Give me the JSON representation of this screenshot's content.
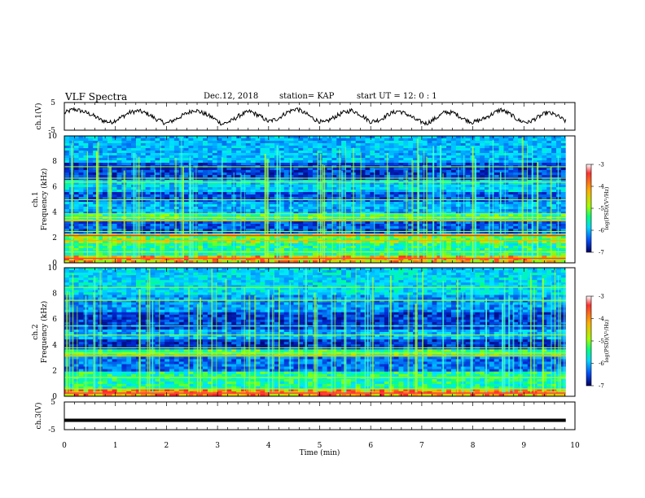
{
  "header": {
    "title": "VLF Spectra",
    "date": "Dec.12, 2018",
    "station": "station= KAP",
    "start": "start UT =  12: 0  : 1"
  },
  "chart_data": [
    {
      "type": "line",
      "ylabel": "ch.1(V)",
      "ylim": [
        -5,
        5
      ],
      "yticks": [
        5,
        -5
      ],
      "xlim": [
        0,
        10
      ],
      "series": [
        {
          "values": [
            1.2,
            2.6,
            1.8,
            0.5,
            -1.4,
            -2.2,
            -0.6,
            1.4,
            2.0,
            0.9,
            -1.2,
            -2.6,
            -1.0,
            0.8,
            2.4,
            1.1,
            -0.5,
            -2.8,
            -1.6,
            0.6,
            1.8,
            0.2,
            -1.9,
            -0.8,
            1.5,
            2.8,
            1.0,
            -1.2,
            -2.4,
            -0.4,
            1.3,
            2.2,
            0.4,
            -2.0,
            -1.2,
            0.9,
            2.0,
            0.6,
            -1.5,
            -2.6,
            -0.7,
            1.6,
            1.2,
            -0.9,
            -2.2,
            -1.1,
            0.7,
            2.5,
            0.8,
            -1.6,
            -2.2,
            -0.3,
            1.4,
            0.4,
            -1.8
          ]
        }
      ]
    },
    {
      "type": "heatmap",
      "ylabel_line1": "ch.1",
      "ylabel_line2": "Frequency (kHz)",
      "ylim": [
        0,
        10
      ],
      "yticks": [
        0,
        2,
        4,
        6,
        8,
        10
      ],
      "xlim": [
        0,
        10
      ],
      "colorbar": {
        "label": "log(PSD)(V²/Hz)",
        "range": [
          -7,
          -3
        ],
        "ticks": [
          -3,
          -4,
          -5,
          -6,
          -7
        ]
      }
    },
    {
      "type": "heatmap",
      "ylabel_line1": "ch.2",
      "ylabel_line2": "Frequency (kHz)",
      "ylim": [
        0,
        10
      ],
      "yticks": [
        0,
        2,
        4,
        6,
        8,
        10
      ],
      "xlim": [
        0,
        10
      ],
      "colorbar": {
        "label": "log(PSD)(V²/Hz)",
        "range": [
          -7,
          -3
        ],
        "ticks": [
          -3,
          -4,
          -5,
          -6,
          -7
        ]
      }
    },
    {
      "type": "line",
      "ylabel": "ch.3(V)",
      "ylim": [
        -5,
        5
      ],
      "yticks": [
        5,
        -5
      ],
      "xlim": [
        0,
        10
      ],
      "series": [
        {
          "values": [
            -1.6,
            -1.6
          ]
        }
      ]
    }
  ],
  "xaxis": {
    "label": "Time (min)",
    "ticks": [
      0,
      1,
      2,
      3,
      4,
      5,
      6,
      7,
      8,
      9,
      10
    ],
    "data_extent_min": 9.82
  }
}
